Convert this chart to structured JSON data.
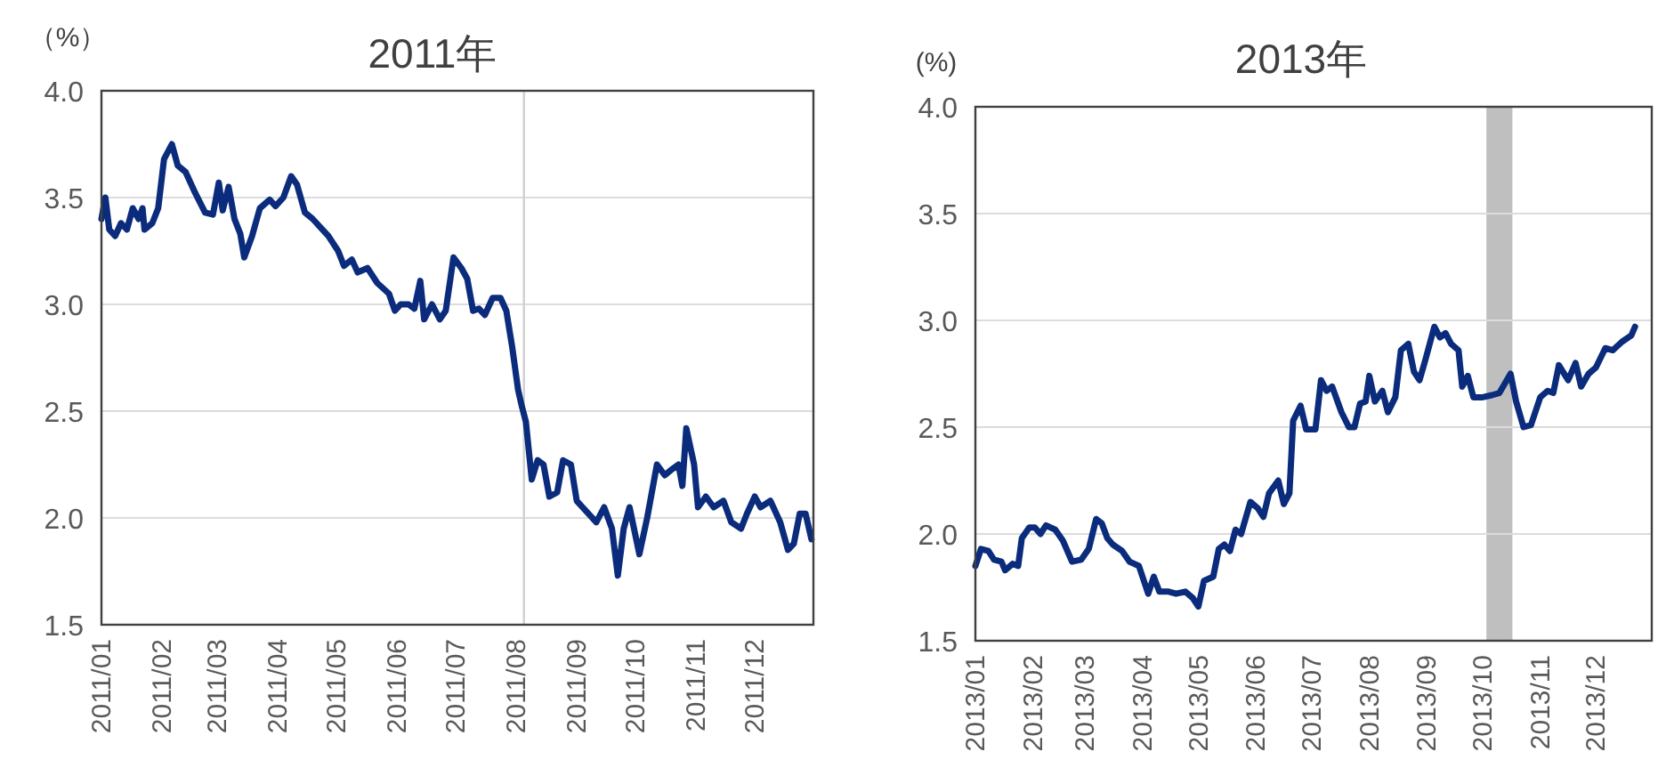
{
  "chart_data": [
    {
      "type": "line",
      "title": "2011年",
      "ylabel": "（%）",
      "xlim": [
        "2011-01-01",
        "2011-12-31"
      ],
      "ylim": [
        1.5,
        4.0
      ],
      "yticks": [
        {
          "value": 1.5,
          "label": "1.5"
        },
        {
          "value": 2.0,
          "label": "2.0"
        },
        {
          "value": 2.5,
          "label": "2.5"
        },
        {
          "value": 3.0,
          "label": "3.0"
        },
        {
          "value": 3.5,
          "label": "3.5"
        },
        {
          "value": 4.0,
          "label": "4.0"
        }
      ],
      "xticks": [
        {
          "value": "2011-01-01",
          "label": "2011/01"
        },
        {
          "value": "2011-02-01",
          "label": "2011/02"
        },
        {
          "value": "2011-03-01",
          "label": "2011/03"
        },
        {
          "value": "2011-04-01",
          "label": "2011/04"
        },
        {
          "value": "2011-05-01",
          "label": "2011/05"
        },
        {
          "value": "2011-06-01",
          "label": "2011/06"
        },
        {
          "value": "2011-07-01",
          "label": "2011/07"
        },
        {
          "value": "2011-08-01",
          "label": "2011/08"
        },
        {
          "value": "2011-09-01",
          "label": "2011/09"
        },
        {
          "value": "2011-10-01",
          "label": "2011/10"
        },
        {
          "value": "2011-11-01",
          "label": "2011/11"
        },
        {
          "value": "2011-12-01",
          "label": "2011/12"
        }
      ],
      "grid": "y",
      "marker": "none",
      "line_style": "solid",
      "ref_lines": [
        {
          "axis": "x",
          "value": "2011-08-05",
          "color": "#d0d0d0"
        }
      ],
      "x": [
        "2011-01-01",
        "2011-01-03",
        "2011-01-05",
        "2011-01-08",
        "2011-01-11",
        "2011-01-14",
        "2011-01-17",
        "2011-01-20",
        "2011-01-22",
        "2011-01-23",
        "2011-01-27",
        "2011-01-30",
        "2011-02-02",
        "2011-02-06",
        "2011-02-09",
        "2011-02-13",
        "2011-02-18",
        "2011-02-23",
        "2011-02-27",
        "2011-03-02",
        "2011-03-04",
        "2011-03-07",
        "2011-03-10",
        "2011-03-13",
        "2011-03-15",
        "2011-03-19",
        "2011-03-23",
        "2011-03-28",
        "2011-03-31",
        "2011-04-04",
        "2011-04-08",
        "2011-04-11",
        "2011-04-15",
        "2011-04-19",
        "2011-04-23",
        "2011-04-27",
        "2011-05-02",
        "2011-05-05",
        "2011-05-09",
        "2011-05-12",
        "2011-05-17",
        "2011-05-22",
        "2011-05-28",
        "2011-05-31",
        "2011-06-03",
        "2011-06-07",
        "2011-06-10",
        "2011-06-13",
        "2011-06-15",
        "2011-06-19",
        "2011-06-23",
        "2011-06-26",
        "2011-06-30",
        "2011-07-04",
        "2011-07-07",
        "2011-07-10",
        "2011-07-13",
        "2011-07-16",
        "2011-07-20",
        "2011-07-24",
        "2011-07-27",
        "2011-07-30",
        "2011-08-02",
        "2011-08-04",
        "2011-08-06",
        "2011-08-09",
        "2011-08-12",
        "2011-08-15",
        "2011-08-18",
        "2011-08-22",
        "2011-08-25",
        "2011-08-29",
        "2011-09-01",
        "2011-09-06",
        "2011-09-11",
        "2011-09-15",
        "2011-09-19",
        "2011-09-22",
        "2011-09-25",
        "2011-09-28",
        "2011-10-03",
        "2011-10-07",
        "2011-10-12",
        "2011-10-16",
        "2011-10-20",
        "2011-10-23",
        "2011-10-25",
        "2011-10-27",
        "2011-10-31",
        "2011-11-02",
        "2011-11-06",
        "2011-11-10",
        "2011-11-15",
        "2011-11-19",
        "2011-11-24",
        "2011-11-27",
        "2011-12-01",
        "2011-12-04",
        "2011-12-09",
        "2011-12-14",
        "2011-12-18",
        "2011-12-21",
        "2011-12-24",
        "2011-12-27",
        "2011-12-30"
      ],
      "series": [
        {
          "color": "#0b2c7c",
          "values": [
            3.4,
            3.5,
            3.35,
            3.32,
            3.38,
            3.35,
            3.45,
            3.4,
            3.45,
            3.35,
            3.38,
            3.45,
            3.68,
            3.75,
            3.65,
            3.62,
            3.52,
            3.43,
            3.42,
            3.57,
            3.44,
            3.55,
            3.4,
            3.33,
            3.22,
            3.32,
            3.45,
            3.49,
            3.46,
            3.5,
            3.6,
            3.56,
            3.43,
            3.4,
            3.36,
            3.32,
            3.25,
            3.18,
            3.21,
            3.15,
            3.17,
            3.1,
            3.05,
            2.97,
            3.0,
            3.0,
            2.98,
            3.11,
            2.93,
            3.0,
            2.93,
            2.97,
            3.22,
            3.17,
            3.12,
            2.97,
            2.98,
            2.95,
            3.03,
            3.03,
            2.97,
            2.8,
            2.6,
            2.52,
            2.45,
            2.18,
            2.27,
            2.25,
            2.1,
            2.12,
            2.27,
            2.25,
            2.08,
            2.03,
            1.98,
            2.05,
            1.95,
            1.73,
            1.95,
            2.05,
            1.83,
            2.0,
            2.25,
            2.2,
            2.23,
            2.25,
            2.15,
            2.42,
            2.25,
            2.05,
            2.1,
            2.05,
            2.08,
            1.98,
            1.95,
            2.02,
            2.1,
            2.05,
            2.08,
            1.98,
            1.85,
            1.88,
            2.02,
            2.02,
            1.9
          ]
        }
      ]
    },
    {
      "type": "line",
      "title": "2013年",
      "ylabel": "(%)",
      "xlim": [
        "2013-01-01",
        "2013-12-31"
      ],
      "ylim": [
        1.5,
        4.0
      ],
      "yticks": [
        {
          "value": 1.5,
          "label": "1.5"
        },
        {
          "value": 2.0,
          "label": "2.0"
        },
        {
          "value": 2.5,
          "label": "2.5"
        },
        {
          "value": 3.0,
          "label": "3.0"
        },
        {
          "value": 3.5,
          "label": "3.5"
        },
        {
          "value": 4.0,
          "label": "4.0"
        }
      ],
      "xticks": [
        {
          "value": "2013-01-01",
          "label": "2013/01"
        },
        {
          "value": "2013-02-01",
          "label": "2013/02"
        },
        {
          "value": "2013-03-01",
          "label": "2013/03"
        },
        {
          "value": "2013-04-01",
          "label": "2013/04"
        },
        {
          "value": "2013-05-01",
          "label": "2013/05"
        },
        {
          "value": "2013-06-01",
          "label": "2013/06"
        },
        {
          "value": "2013-07-01",
          "label": "2013/07"
        },
        {
          "value": "2013-08-01",
          "label": "2013/08"
        },
        {
          "value": "2013-09-01",
          "label": "2013/09"
        },
        {
          "value": "2013-10-01",
          "label": "2013/10"
        },
        {
          "value": "2013-11-01",
          "label": "2013/11"
        },
        {
          "value": "2013-12-01",
          "label": "2013/12"
        }
      ],
      "grid": "y",
      "marker": "none",
      "line_style": "solid",
      "bands": [
        {
          "axis": "x",
          "from": "2013-10-03",
          "to": "2013-10-17",
          "color": "#bfbfbf"
        }
      ],
      "x": [
        "2013-01-01",
        "2013-01-04",
        "2013-01-08",
        "2013-01-11",
        "2013-01-15",
        "2013-01-17",
        "2013-01-21",
        "2013-01-24",
        "2013-01-26",
        "2013-01-30",
        "2013-02-02",
        "2013-02-05",
        "2013-02-08",
        "2013-02-13",
        "2013-02-17",
        "2013-02-22",
        "2013-02-27",
        "2013-03-03",
        "2013-03-07",
        "2013-03-10",
        "2013-03-13",
        "2013-03-16",
        "2013-03-21",
        "2013-03-25",
        "2013-03-30",
        "2013-04-04",
        "2013-04-07",
        "2013-04-10",
        "2013-04-15",
        "2013-04-19",
        "2013-04-24",
        "2013-04-28",
        "2013-05-01",
        "2013-05-04",
        "2013-05-09",
        "2013-05-12",
        "2013-05-15",
        "2013-05-18",
        "2013-05-21",
        "2013-05-24",
        "2013-05-29",
        "2013-06-02",
        "2013-06-05",
        "2013-06-08",
        "2013-06-13",
        "2013-06-16",
        "2013-06-19",
        "2013-06-21",
        "2013-06-25",
        "2013-06-28",
        "2013-07-03",
        "2013-07-06",
        "2013-07-09",
        "2013-07-12",
        "2013-07-17",
        "2013-07-21",
        "2013-07-24",
        "2013-07-27",
        "2013-07-30",
        "2013-08-01",
        "2013-08-04",
        "2013-08-08",
        "2013-08-11",
        "2013-08-15",
        "2013-08-18",
        "2013-08-22",
        "2013-08-25",
        "2013-08-28",
        "2013-08-31",
        "2013-09-05",
        "2013-09-08",
        "2013-09-11",
        "2013-09-14",
        "2013-09-18",
        "2013-09-20",
        "2013-09-23",
        "2013-09-26",
        "2013-10-01",
        "2013-10-06",
        "2013-10-10",
        "2013-10-16",
        "2013-10-19",
        "2013-10-23",
        "2013-10-27",
        "2013-11-01",
        "2013-11-05",
        "2013-11-08",
        "2013-11-11",
        "2013-11-16",
        "2013-11-20",
        "2013-11-23",
        "2013-11-27",
        "2013-12-01",
        "2013-12-06",
        "2013-12-10",
        "2013-12-15",
        "2013-12-20",
        "2013-12-22"
      ],
      "series": [
        {
          "color": "#0b2c7c",
          "values": [
            1.85,
            1.93,
            1.92,
            1.88,
            1.87,
            1.83,
            1.86,
            1.85,
            1.98,
            2.03,
            2.03,
            2.0,
            2.04,
            2.02,
            1.97,
            1.87,
            1.88,
            1.93,
            2.07,
            2.05,
            1.98,
            1.95,
            1.92,
            1.87,
            1.85,
            1.72,
            1.8,
            1.73,
            1.73,
            1.72,
            1.73,
            1.7,
            1.66,
            1.78,
            1.8,
            1.93,
            1.95,
            1.92,
            2.02,
            2.0,
            2.15,
            2.12,
            2.08,
            2.19,
            2.25,
            2.14,
            2.19,
            2.53,
            2.6,
            2.49,
            2.49,
            2.72,
            2.67,
            2.69,
            2.57,
            2.5,
            2.5,
            2.61,
            2.62,
            2.74,
            2.62,
            2.67,
            2.57,
            2.64,
            2.86,
            2.89,
            2.76,
            2.72,
            2.81,
            2.97,
            2.92,
            2.94,
            2.89,
            2.86,
            2.69,
            2.74,
            2.64,
            2.64,
            2.65,
            2.66,
            2.75,
            2.62,
            2.5,
            2.51,
            2.64,
            2.67,
            2.66,
            2.79,
            2.72,
            2.8,
            2.69,
            2.75,
            2.78,
            2.87,
            2.86,
            2.9,
            2.93,
            2.97
          ]
        }
      ]
    }
  ]
}
